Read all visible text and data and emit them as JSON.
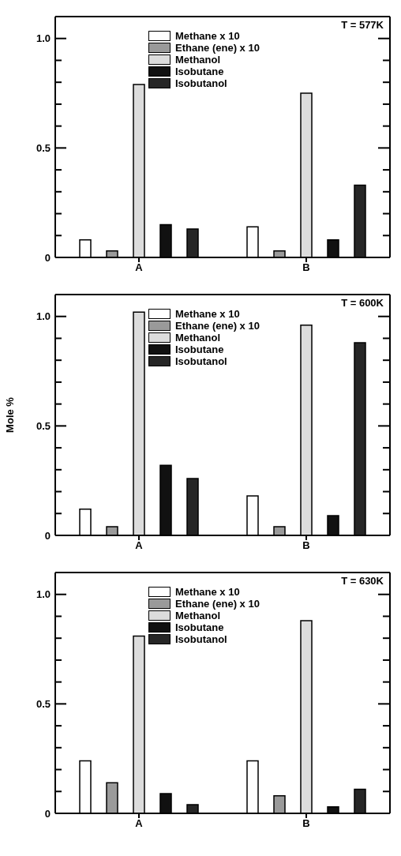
{
  "chart_data": [
    {
      "type": "bar",
      "title": "T = 577K",
      "categories": [
        "A",
        "B"
      ],
      "series": [
        {
          "name": "Methane x 10",
          "color": "#ffffff",
          "values": [
            0.08,
            0.14
          ]
        },
        {
          "name": "Ethane (ene) x 10",
          "color": "#9a9a9a",
          "values": [
            0.03,
            0.03
          ]
        },
        {
          "name": "Methanol",
          "color": "#dcdcdc",
          "values": [
            0.79,
            0.75
          ]
        },
        {
          "name": "Isobutane",
          "color": "#111111",
          "values": [
            0.15,
            0.08
          ]
        },
        {
          "name": "Isobutanol",
          "color": "#262626",
          "values": [
            0.13,
            0.33
          ]
        }
      ],
      "ylim": [
        0,
        1.1
      ],
      "yticks": [
        {
          "value": 0,
          "label": "0"
        },
        {
          "value": 0.1,
          "label": null
        },
        {
          "value": 0.2,
          "label": null
        },
        {
          "value": 0.3,
          "label": null
        },
        {
          "value": 0.4,
          "label": null
        },
        {
          "value": 0.5,
          "label": "0.5"
        },
        {
          "value": 0.6,
          "label": null
        },
        {
          "value": 0.7,
          "label": null
        },
        {
          "value": 0.8,
          "label": null
        },
        {
          "value": 0.9,
          "label": null
        },
        {
          "value": 1,
          "label": "1.0"
        }
      ],
      "legend": "top",
      "grid": false
    },
    {
      "type": "bar",
      "title": "T = 600K",
      "ylabel": "Mole %",
      "categories": [
        "A",
        "B"
      ],
      "series": [
        {
          "name": "Methane x 10",
          "color": "#ffffff",
          "values": [
            0.12,
            0.18
          ]
        },
        {
          "name": "Ethane (ene) x 10",
          "color": "#9a9a9a",
          "values": [
            0.04,
            0.04
          ]
        },
        {
          "name": "Methanol",
          "color": "#dcdcdc",
          "values": [
            1.02,
            0.96
          ]
        },
        {
          "name": "Isobutane",
          "color": "#111111",
          "values": [
            0.32,
            0.09
          ]
        },
        {
          "name": "Isobutanol",
          "color": "#262626",
          "values": [
            0.26,
            0.88
          ]
        }
      ],
      "ylim": [
        0,
        1.1
      ],
      "yticks": [
        {
          "value": 0,
          "label": "0"
        },
        {
          "value": 0.1,
          "label": null
        },
        {
          "value": 0.2,
          "label": null
        },
        {
          "value": 0.3,
          "label": null
        },
        {
          "value": 0.4,
          "label": null
        },
        {
          "value": 0.5,
          "label": "0.5"
        },
        {
          "value": 0.6,
          "label": null
        },
        {
          "value": 0.7,
          "label": null
        },
        {
          "value": 0.8,
          "label": null
        },
        {
          "value": 0.9,
          "label": null
        },
        {
          "value": 1,
          "label": "1.0"
        }
      ],
      "legend": "top",
      "grid": false
    },
    {
      "type": "bar",
      "title": "T = 630K",
      "categories": [
        "A",
        "B"
      ],
      "series": [
        {
          "name": "Methane x 10",
          "color": "#ffffff",
          "values": [
            0.24,
            0.24
          ]
        },
        {
          "name": "Ethane (ene) x 10",
          "color": "#9a9a9a",
          "values": [
            0.14,
            0.08
          ]
        },
        {
          "name": "Methanol",
          "color": "#dcdcdc",
          "values": [
            0.81,
            0.88
          ]
        },
        {
          "name": "Isobutane",
          "color": "#111111",
          "values": [
            0.09,
            0.03
          ]
        },
        {
          "name": "Isobutanol",
          "color": "#262626",
          "values": [
            0.04,
            0.11
          ]
        }
      ],
      "ylim": [
        0,
        1.1
      ],
      "yticks": [
        {
          "value": 0,
          "label": "0"
        },
        {
          "value": 0.1,
          "label": null
        },
        {
          "value": 0.2,
          "label": null
        },
        {
          "value": 0.3,
          "label": null
        },
        {
          "value": 0.4,
          "label": null
        },
        {
          "value": 0.5,
          "label": "0.5"
        },
        {
          "value": 0.6,
          "label": null
        },
        {
          "value": 0.7,
          "label": null
        },
        {
          "value": 0.8,
          "label": null
        },
        {
          "value": 0.9,
          "label": null
        },
        {
          "value": 1,
          "label": "1.0"
        }
      ],
      "legend": "top",
      "grid": false
    }
  ]
}
